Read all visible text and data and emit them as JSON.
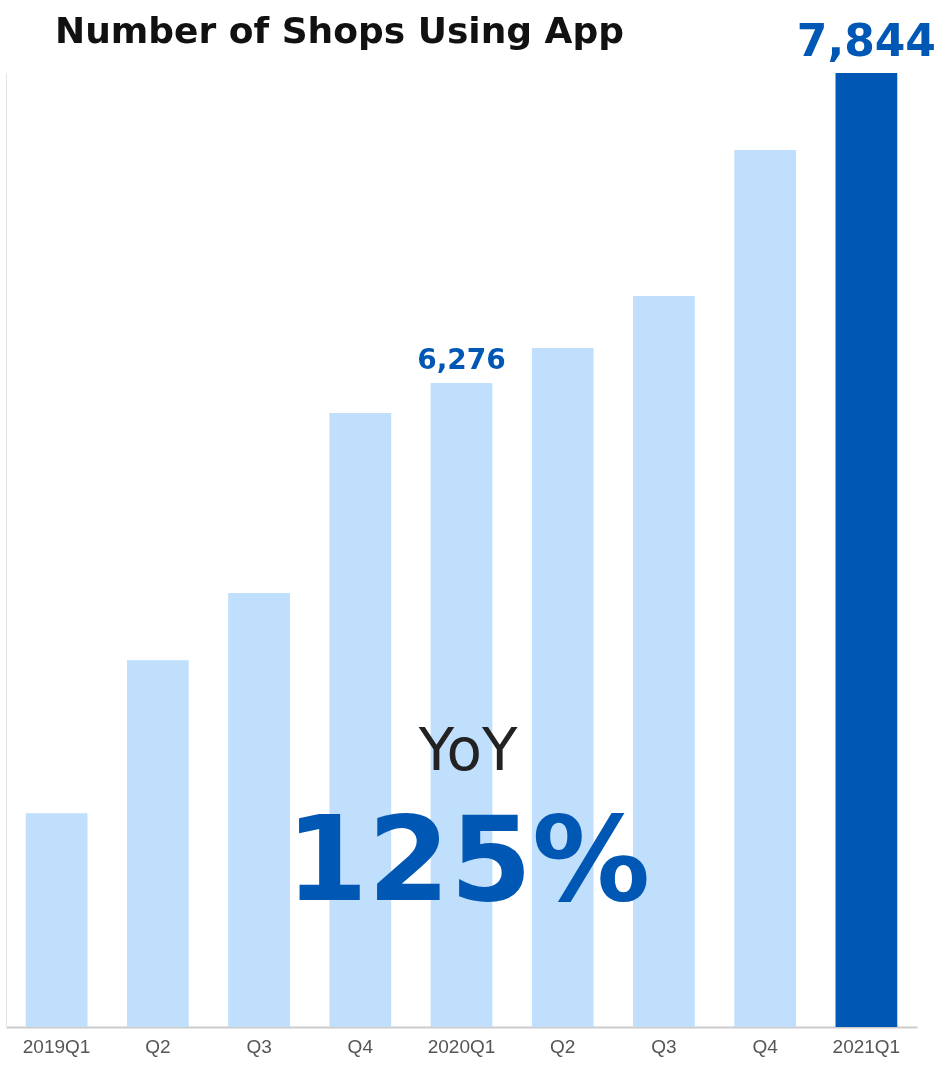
{
  "chart_data": {
    "type": "bar",
    "title": "Number of Shops Using App",
    "categories": [
      "2019Q1",
      "Q2",
      "Q3",
      "Q4",
      "2020Q1",
      "Q2",
      "Q3",
      "Q4",
      "2021Q1"
    ],
    "values": [
      4101,
      4875,
      5214,
      6125,
      6276,
      6453,
      6716,
      7455,
      7844
    ],
    "colors": [
      "#bfdffd",
      "#bfdffd",
      "#bfdffd",
      "#bfdffd",
      "#bfdffd",
      "#bfdffd",
      "#bfdffd",
      "#bfdffd",
      "#0058b4"
    ],
    "value_labels": [
      null,
      null,
      null,
      null,
      "6,276",
      null,
      null,
      null,
      "7,844"
    ],
    "ylim": [
      3020,
      7844
    ],
    "tick_labels": "x",
    "annotations": [
      "YoY",
      "125%"
    ]
  }
}
